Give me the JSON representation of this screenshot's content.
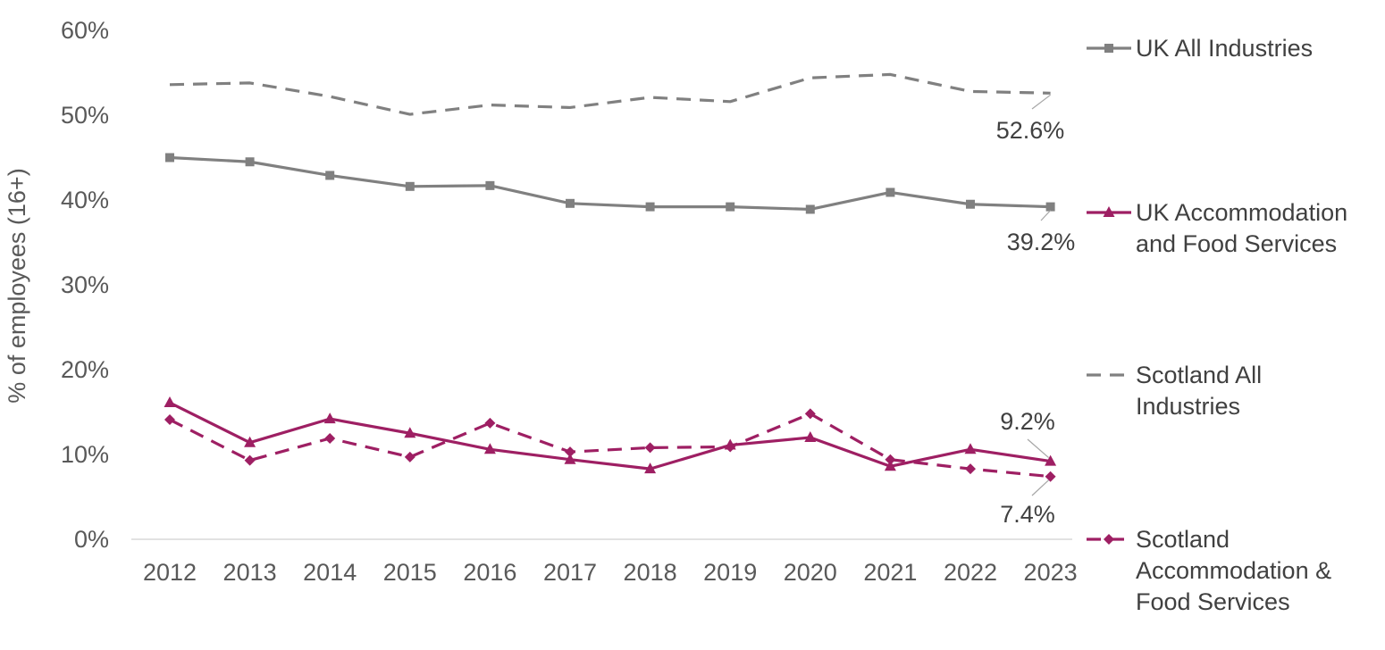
{
  "chart_data": {
    "type": "line",
    "title": "",
    "xlabel": "",
    "ylabel": "% of employees (16+)",
    "ylim": [
      0,
      60
    ],
    "yticks": [
      0,
      10,
      20,
      30,
      40,
      50,
      60
    ],
    "ytick_labels": [
      "0%",
      "10%",
      "20%",
      "30%",
      "40%",
      "50%",
      "60%"
    ],
    "categories": [
      "2012",
      "2013",
      "2014",
      "2015",
      "2016",
      "2017",
      "2018",
      "2019",
      "2020",
      "2021",
      "2022",
      "2023"
    ],
    "grid": false,
    "legend_position": "right",
    "series": [
      {
        "name": "UK All Industries",
        "color": "#808080",
        "dash": "solid",
        "marker": "square",
        "values": [
          45.0,
          44.5,
          42.9,
          41.6,
          41.7,
          39.6,
          39.2,
          39.2,
          38.9,
          40.9,
          39.5,
          39.2
        ],
        "end_label": "39.2%"
      },
      {
        "name": "UK Accommodation and Food Services",
        "legend_lines": [
          "UK Accommodation",
          "and Food Services"
        ],
        "color": "#9E1F63",
        "dash": "solid",
        "marker": "triangle",
        "values": [
          16.1,
          11.4,
          14.2,
          12.5,
          10.6,
          9.4,
          8.3,
          11.1,
          12.0,
          8.6,
          10.6,
          9.2
        ],
        "end_label": "9.2%"
      },
      {
        "name": "Scotland All Industries",
        "legend_lines": [
          "Scotland All",
          "Industries"
        ],
        "color": "#808080",
        "dash": "dashed",
        "marker": "none",
        "values": [
          53.6,
          53.8,
          52.2,
          50.1,
          51.2,
          50.9,
          52.1,
          51.6,
          54.4,
          54.8,
          52.8,
          52.6
        ],
        "end_label": "52.6%"
      },
      {
        "name": "Scotland Accommodation & Food Services",
        "legend_lines": [
          "Scotland",
          "Accommodation &",
          "Food Services"
        ],
        "color": "#9E1F63",
        "dash": "dashed",
        "marker": "diamond",
        "values": [
          14.1,
          9.3,
          11.9,
          9.7,
          13.7,
          10.3,
          10.8,
          10.9,
          14.8,
          9.4,
          8.3,
          7.4
        ],
        "end_label": "7.4%"
      }
    ]
  }
}
